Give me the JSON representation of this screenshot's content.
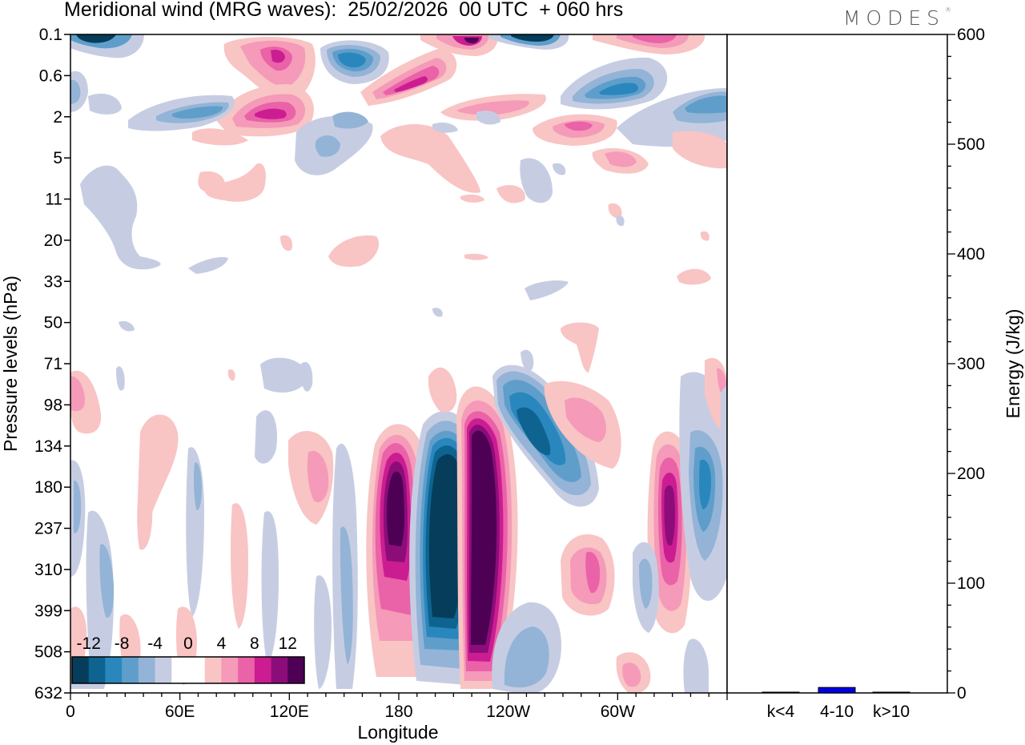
{
  "header": {
    "title": "Meridional wind (MRG waves):  25/02/2026  00 UTC  + 060 hrs",
    "logo": "MODES"
  },
  "chart_data": [
    {
      "type": "heatmap",
      "title": "Meridional wind (MRG waves):  25/02/2026  00 UTC  + 060 hrs",
      "xlabel": "Longitude",
      "ylabel": "Pressure levels (hPa)",
      "x_ticks": [
        "0",
        "60E",
        "120E",
        "180",
        "120W",
        "60W"
      ],
      "x_range": [
        0,
        360
      ],
      "y_ticks": [
        "0.1",
        "0.6",
        "2",
        "5",
        "11",
        "20",
        "33",
        "50",
        "71",
        "98",
        "134",
        "180",
        "237",
        "310",
        "399",
        "508",
        "632"
      ],
      "colorbar": {
        "labels": [
          "-12",
          "-8",
          "-4",
          "0",
          "4",
          "8",
          "12"
        ],
        "levels": [
          -14,
          -12,
          -10,
          -8,
          -6,
          -4,
          -2,
          2,
          4,
          6,
          8,
          10,
          12,
          14
        ],
        "colors": [
          "#053d5b",
          "#0e6390",
          "#2a87bd",
          "#5f9ecb",
          "#93b4d6",
          "#c6cde3",
          "#ffffff",
          "#ffffff",
          "#f9c4c4",
          "#f59ab9",
          "#ea62a8",
          "#cb1d91",
          "#8c0d7a",
          "#4d0054"
        ]
      },
      "features": [
        {
          "name": "positive-core-1",
          "lon_center": 182,
          "level_top": "134",
          "level_bottom": "399",
          "peak": 14
        },
        {
          "name": "negative-core",
          "lon_center": 199,
          "level_top": "134",
          "level_bottom": "399",
          "peak": -14
        },
        {
          "name": "positive-core-2",
          "lon_center": 224,
          "level_top": "134",
          "level_bottom": "508",
          "peak": 14
        },
        {
          "name": "negative-core-2",
          "lon_center": 250,
          "level_top": "98",
          "level_bottom": "237",
          "peak": -10
        },
        {
          "name": "positive-core-3",
          "lon_center": 329,
          "level_top": "134",
          "level_bottom": "310",
          "peak": 14
        },
        {
          "name": "negative-core-3",
          "lon_center": 348,
          "level_top": "134",
          "level_bottom": "310",
          "peak": -8
        }
      ]
    },
    {
      "type": "bar",
      "ylabel": "Energy (J/kg)",
      "categories": [
        "k<4",
        "4-10",
        "k>10"
      ],
      "values": [
        0,
        5,
        0
      ],
      "ylim": [
        0,
        600
      ],
      "y_ticks": [
        "0",
        "100",
        "200",
        "300",
        "400",
        "500",
        "600"
      ],
      "bar_color": "#0000e0"
    }
  ]
}
